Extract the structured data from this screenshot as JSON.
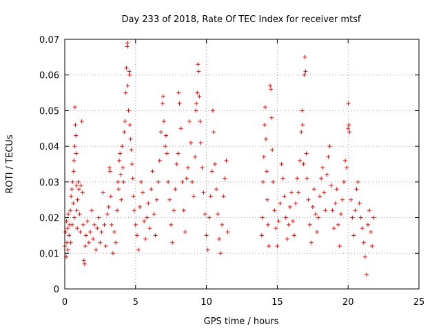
{
  "chart_data": {
    "type": "scatter",
    "title": "Day 233 of 2018, Rate Of TEC Index for receiver mtsf",
    "xlabel": "GPS time / hours",
    "ylabel": "ROTI / TECUs",
    "xlim": [
      0,
      25
    ],
    "ylim": [
      0,
      0.07
    ],
    "xticks": [
      0,
      5,
      10,
      15,
      20,
      25
    ],
    "xtick_labels": [
      "0",
      "5",
      "10",
      "15",
      "20",
      "25"
    ],
    "yticks": [
      0,
      0.01,
      0.02,
      0.03,
      0.04,
      0.05,
      0.06,
      0.07
    ],
    "ytick_labels": [
      "0",
      "0.01",
      "0.02",
      "0.03",
      "0.04",
      "0.05",
      "0.06",
      "0.07"
    ],
    "grid": true,
    "marker": "+",
    "color": "#ff0000",
    "series": [
      {
        "name": "ROTI",
        "points": [
          [
            0.0,
            0.012
          ],
          [
            0.05,
            0.016
          ],
          [
            0.1,
            0.009
          ],
          [
            0.12,
            0.019
          ],
          [
            0.15,
            0.013
          ],
          [
            0.2,
            0.017
          ],
          [
            0.22,
            0.011
          ],
          [
            0.25,
            0.021
          ],
          [
            0.3,
            0.015
          ],
          [
            0.35,
            0.018
          ],
          [
            0.4,
            0.022
          ],
          [
            0.42,
            0.013
          ],
          [
            0.45,
            0.026
          ],
          [
            0.5,
            0.028
          ],
          [
            0.52,
            0.018
          ],
          [
            0.55,
            0.03
          ],
          [
            0.6,
            0.024
          ],
          [
            0.62,
            0.033
          ],
          [
            0.65,
            0.036
          ],
          [
            0.68,
            0.02
          ],
          [
            0.7,
            0.04
          ],
          [
            0.72,
            0.051
          ],
          [
            0.75,
            0.046
          ],
          [
            0.78,
            0.043
          ],
          [
            0.8,
            0.038
          ],
          [
            0.82,
            0.029
          ],
          [
            0.85,
            0.022
          ],
          [
            0.88,
            0.017
          ],
          [
            0.9,
            0.025
          ],
          [
            0.95,
            0.03
          ],
          [
            1.0,
            0.028
          ],
          [
            1.05,
            0.021
          ],
          [
            1.1,
            0.016
          ],
          [
            1.15,
            0.029
          ],
          [
            1.2,
            0.047
          ],
          [
            1.25,
            0.027
          ],
          [
            1.3,
            0.018
          ],
          [
            1.35,
            0.008
          ],
          [
            1.4,
            0.007
          ],
          [
            1.45,
            0.012
          ],
          [
            1.5,
            0.015
          ],
          [
            1.6,
            0.019
          ],
          [
            1.7,
            0.013
          ],
          [
            1.8,
            0.016
          ],
          [
            1.9,
            0.022
          ],
          [
            2.0,
            0.014
          ],
          [
            2.1,
            0.018
          ],
          [
            2.2,
            0.011
          ],
          [
            2.3,
            0.017
          ],
          [
            2.4,
            0.02
          ],
          [
            2.5,
            0.013
          ],
          [
            2.6,
            0.016
          ],
          [
            2.7,
            0.027
          ],
          [
            2.8,
            0.018
          ],
          [
            2.9,
            0.012
          ],
          [
            3.0,
            0.021
          ],
          [
            3.1,
            0.023
          ],
          [
            3.15,
            0.034
          ],
          [
            3.2,
            0.033
          ],
          [
            3.25,
            0.026
          ],
          [
            3.3,
            0.018
          ],
          [
            3.4,
            0.01
          ],
          [
            3.5,
            0.016
          ],
          [
            3.6,
            0.013
          ],
          [
            3.7,
            0.022
          ],
          [
            3.75,
            0.03
          ],
          [
            3.8,
            0.028
          ],
          [
            3.85,
            0.036
          ],
          [
            3.9,
            0.038
          ],
          [
            3.95,
            0.032
          ],
          [
            4.0,
            0.025
          ],
          [
            4.05,
            0.04
          ],
          [
            4.1,
            0.034
          ],
          [
            4.15,
            0.03
          ],
          [
            4.2,
            0.044
          ],
          [
            4.25,
            0.047
          ],
          [
            4.3,
            0.055
          ],
          [
            4.35,
            0.062
          ],
          [
            4.4,
            0.068
          ],
          [
            4.42,
            0.069
          ],
          [
            4.45,
            0.057
          ],
          [
            4.5,
            0.05
          ],
          [
            4.55,
            0.061
          ],
          [
            4.58,
            0.06
          ],
          [
            4.6,
            0.046
          ],
          [
            4.65,
            0.042
          ],
          [
            4.7,
            0.039
          ],
          [
            4.75,
            0.035
          ],
          [
            4.8,
            0.031
          ],
          [
            4.85,
            0.026
          ],
          [
            4.9,
            0.022
          ],
          [
            5.0,
            0.018
          ],
          [
            5.1,
            0.015
          ],
          [
            5.2,
            0.011
          ],
          [
            5.3,
            0.023
          ],
          [
            5.4,
            0.03
          ],
          [
            5.5,
            0.027
          ],
          [
            5.6,
            0.019
          ],
          [
            5.7,
            0.014
          ],
          [
            5.8,
            0.02
          ],
          [
            5.9,
            0.024
          ],
          [
            6.0,
            0.017
          ],
          [
            6.1,
            0.028
          ],
          [
            6.2,
            0.033
          ],
          [
            6.3,
            0.021
          ],
          [
            6.4,
            0.015
          ],
          [
            6.5,
            0.025
          ],
          [
            6.6,
            0.03
          ],
          [
            6.7,
            0.036
          ],
          [
            6.8,
            0.044
          ],
          [
            6.9,
            0.052
          ],
          [
            6.95,
            0.054
          ],
          [
            7.0,
            0.047
          ],
          [
            7.1,
            0.04
          ],
          [
            7.15,
            0.043
          ],
          [
            7.2,
            0.038
          ],
          [
            7.3,
            0.03
          ],
          [
            7.4,
            0.025
          ],
          [
            7.5,
            0.018
          ],
          [
            7.6,
            0.013
          ],
          [
            7.7,
            0.022
          ],
          [
            7.8,
            0.028
          ],
          [
            7.9,
            0.035
          ],
          [
            8.0,
            0.038
          ],
          [
            8.05,
            0.055
          ],
          [
            8.1,
            0.052
          ],
          [
            8.2,
            0.045
          ],
          [
            8.3,
            0.03
          ],
          [
            8.4,
            0.022
          ],
          [
            8.5,
            0.016
          ],
          [
            8.6,
            0.031
          ],
          [
            8.7,
            0.034
          ],
          [
            8.8,
            0.047
          ],
          [
            8.9,
            0.041
          ],
          [
            9.0,
            0.03
          ],
          [
            9.1,
            0.026
          ],
          [
            9.2,
            0.037
          ],
          [
            9.25,
            0.05
          ],
          [
            9.3,
            0.052
          ],
          [
            9.35,
            0.055
          ],
          [
            9.4,
            0.063
          ],
          [
            9.45,
            0.061
          ],
          [
            9.5,
            0.054
          ],
          [
            9.55,
            0.047
          ],
          [
            9.6,
            0.041
          ],
          [
            9.7,
            0.034
          ],
          [
            9.8,
            0.027
          ],
          [
            9.9,
            0.021
          ],
          [
            10.0,
            0.015
          ],
          [
            10.1,
            0.011
          ],
          [
            10.2,
            0.02
          ],
          [
            10.3,
            0.026
          ],
          [
            10.4,
            0.033
          ],
          [
            10.45,
            0.05
          ],
          [
            10.5,
            0.044
          ],
          [
            10.6,
            0.035
          ],
          [
            10.7,
            0.028
          ],
          [
            10.8,
            0.021
          ],
          [
            10.9,
            0.014
          ],
          [
            11.0,
            0.01
          ],
          [
            11.1,
            0.018
          ],
          [
            11.2,
            0.026
          ],
          [
            11.3,
            0.031
          ],
          [
            11.4,
            0.036
          ],
          [
            11.5,
            0.016
          ],
          [
            13.9,
            0.015
          ],
          [
            13.95,
            0.02
          ],
          [
            14.0,
            0.03
          ],
          [
            14.05,
            0.037
          ],
          [
            14.1,
            0.046
          ],
          [
            14.15,
            0.051
          ],
          [
            14.2,
            0.042
          ],
          [
            14.25,
            0.033
          ],
          [
            14.3,
            0.025
          ],
          [
            14.35,
            0.018
          ],
          [
            14.4,
            0.012
          ],
          [
            14.5,
            0.057
          ],
          [
            14.55,
            0.056
          ],
          [
            14.6,
            0.048
          ],
          [
            14.65,
            0.039
          ],
          [
            14.7,
            0.03
          ],
          [
            14.8,
            0.022
          ],
          [
            14.9,
            0.017
          ],
          [
            15.0,
            0.012
          ],
          [
            15.1,
            0.019
          ],
          [
            15.2,
            0.024
          ],
          [
            15.3,
            0.035
          ],
          [
            15.4,
            0.031
          ],
          [
            15.5,
            0.026
          ],
          [
            15.6,
            0.02
          ],
          [
            15.7,
            0.014
          ],
          [
            15.8,
            0.018
          ],
          [
            15.9,
            0.023
          ],
          [
            16.0,
            0.027
          ],
          [
            16.1,
            0.019
          ],
          [
            16.2,
            0.015
          ],
          [
            16.3,
            0.024
          ],
          [
            16.4,
            0.031
          ],
          [
            16.5,
            0.027
          ],
          [
            16.6,
            0.036
          ],
          [
            16.7,
            0.044
          ],
          [
            16.75,
            0.05
          ],
          [
            16.8,
            0.046
          ],
          [
            16.85,
            0.035
          ],
          [
            16.9,
            0.06
          ],
          [
            16.95,
            0.065
          ],
          [
            17.0,
            0.061
          ],
          [
            17.05,
            0.038
          ],
          [
            17.1,
            0.031
          ],
          [
            17.2,
            0.025
          ],
          [
            17.3,
            0.018
          ],
          [
            17.4,
            0.013
          ],
          [
            17.5,
            0.023
          ],
          [
            17.6,
            0.028
          ],
          [
            17.7,
            0.021
          ],
          [
            17.8,
            0.016
          ],
          [
            17.9,
            0.02
          ],
          [
            18.0,
            0.026
          ],
          [
            18.1,
            0.031
          ],
          [
            18.2,
            0.034
          ],
          [
            18.3,
            0.027
          ],
          [
            18.4,
            0.022
          ],
          [
            18.5,
            0.032
          ],
          [
            18.6,
            0.037
          ],
          [
            18.7,
            0.04
          ],
          [
            18.8,
            0.029
          ],
          [
            18.9,
            0.022
          ],
          [
            19.0,
            0.017
          ],
          [
            19.1,
            0.024
          ],
          [
            19.2,
            0.028
          ],
          [
            19.3,
            0.018
          ],
          [
            19.4,
            0.012
          ],
          [
            19.5,
            0.021
          ],
          [
            19.6,
            0.025
          ],
          [
            19.7,
            0.03
          ],
          [
            19.8,
            0.036
          ],
          [
            19.9,
            0.034
          ],
          [
            20.0,
            0.045
          ],
          [
            20.02,
            0.052
          ],
          [
            20.05,
            0.046
          ],
          [
            20.1,
            0.044
          ],
          [
            20.2,
            0.025
          ],
          [
            20.3,
            0.02
          ],
          [
            20.4,
            0.015
          ],
          [
            20.5,
            0.022
          ],
          [
            20.6,
            0.028
          ],
          [
            20.7,
            0.03
          ],
          [
            20.8,
            0.024
          ],
          [
            20.9,
            0.02
          ],
          [
            21.0,
            0.017
          ],
          [
            21.1,
            0.013
          ],
          [
            21.2,
            0.009
          ],
          [
            21.3,
            0.004
          ],
          [
            21.4,
            0.018
          ],
          [
            21.5,
            0.022
          ],
          [
            21.6,
            0.016
          ],
          [
            21.7,
            0.012
          ],
          [
            21.8,
            0.02
          ]
        ]
      }
    ]
  }
}
